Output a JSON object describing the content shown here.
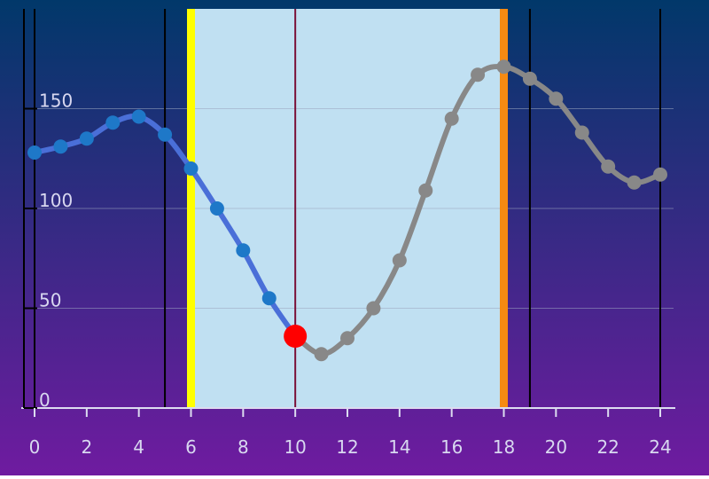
{
  "chart_data": {
    "type": "line",
    "x": [
      0,
      1,
      2,
      3,
      4,
      5,
      6,
      7,
      8,
      9,
      10,
      11,
      12,
      13,
      14,
      15,
      16,
      17,
      18,
      19,
      20,
      21,
      22,
      23,
      24
    ],
    "series": [
      {
        "values": [
          128,
          131,
          135,
          143,
          146,
          137,
          120,
          100,
          79,
          55,
          36,
          27,
          35,
          50,
          74,
          109,
          145,
          167,
          171,
          165,
          155,
          138,
          121,
          113,
          117
        ]
      }
    ],
    "highlight_index": 10,
    "shaded_range": [
      6,
      18
    ],
    "xlim": [
      0,
      24
    ],
    "ylim": [
      0,
      200
    ],
    "x_ticks": [
      "0",
      "2",
      "4",
      "6",
      "8",
      "10",
      "12",
      "14",
      "16",
      "18",
      "20",
      "22",
      "24"
    ],
    "y_ticks": [
      "0",
      "50",
      "100",
      "150"
    ],
    "marker_lines": {
      "black": [
        0,
        5,
        19,
        24
      ],
      "yellow": 6,
      "orange": 18,
      "current": 10
    },
    "colors": {
      "background_top": "#01386a",
      "background_bottom": "#6f1ba0",
      "past_line": "#4a6fd8",
      "past_point": "#1e78c8",
      "future_line": "#888888",
      "highlight_point": "#ff0000",
      "shaded_region": "#c0e0f2",
      "yellow_line": "#ffff00",
      "orange_line": "#f58a12",
      "current_line": "#7a1038",
      "axis": "#dcdcf0",
      "tick_label": "#d8d8f0",
      "grid": "#9aa6c0"
    }
  }
}
